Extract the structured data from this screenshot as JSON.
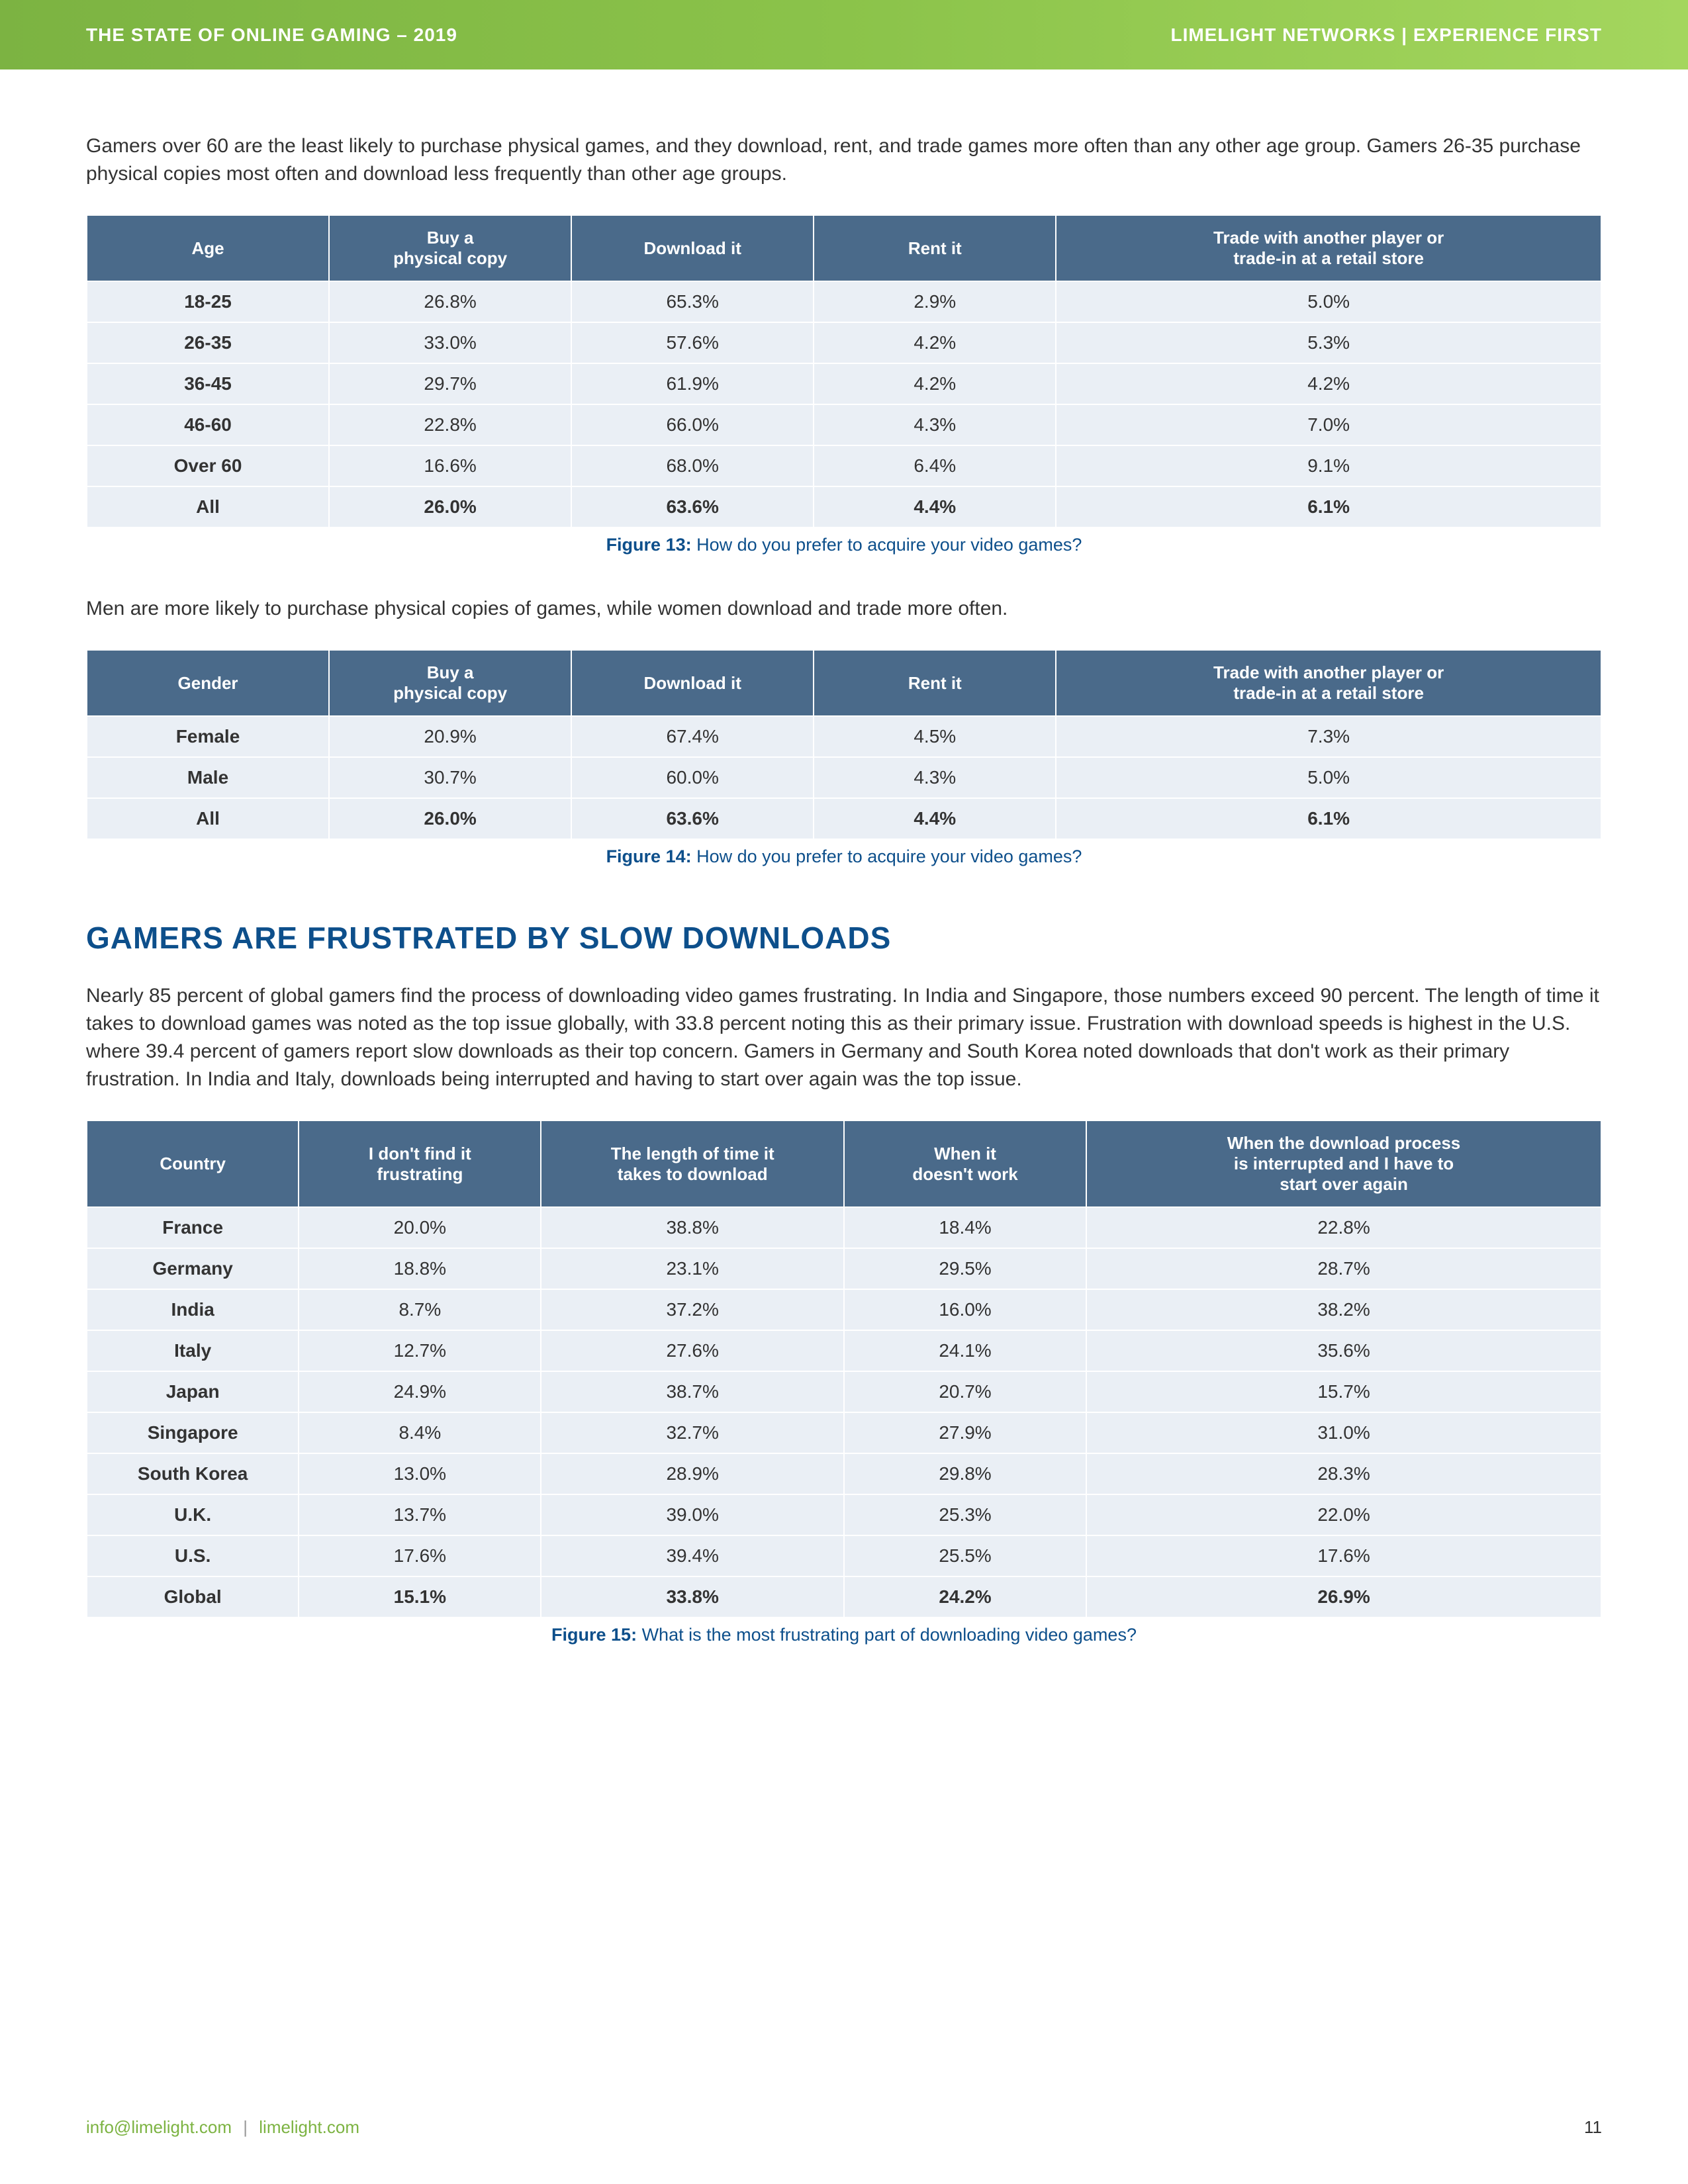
{
  "header": {
    "left": "THE STATE OF ONLINE GAMING – 2019",
    "right": "LIMELIGHT NETWORKS | EXPERIENCE FIRST"
  },
  "intro1": "Gamers over 60 are the least likely to purchase physical games, and they download, rent, and trade games more often than any other age group. Gamers 26-35 purchase physical copies most often and download less frequently than other age groups.",
  "table1": {
    "headers": [
      "Age",
      "Buy a\nphysical copy",
      "Download it",
      "Rent it",
      "Trade with another player or\ntrade-in at a retail store"
    ],
    "rows": [
      [
        "18-25",
        "26.8%",
        "65.3%",
        "2.9%",
        "5.0%"
      ],
      [
        "26-35",
        "33.0%",
        "57.6%",
        "4.2%",
        "5.3%"
      ],
      [
        "36-45",
        "29.7%",
        "61.9%",
        "4.2%",
        "4.2%"
      ],
      [
        "46-60",
        "22.8%",
        "66.0%",
        "4.3%",
        "7.0%"
      ],
      [
        "Over 60",
        "16.6%",
        "68.0%",
        "6.4%",
        "9.1%"
      ],
      [
        "All",
        "26.0%",
        "63.6%",
        "4.4%",
        "6.1%"
      ]
    ],
    "caption_label": "Figure 13:",
    "caption_text": " How do you prefer to acquire your video games?"
  },
  "intro2": "Men are more likely to purchase physical copies of games, while women download and trade more often.",
  "table2": {
    "headers": [
      "Gender",
      "Buy a\nphysical copy",
      "Download it",
      "Rent it",
      "Trade with another player or\ntrade-in at a retail store"
    ],
    "rows": [
      [
        "Female",
        "20.9%",
        "67.4%",
        "4.5%",
        "7.3%"
      ],
      [
        "Male",
        "30.7%",
        "60.0%",
        "4.3%",
        "5.0%"
      ],
      [
        "All",
        "26.0%",
        "63.6%",
        "4.4%",
        "6.1%"
      ]
    ],
    "caption_label": "Figure 14:",
    "caption_text": " How do you prefer to acquire your video games?"
  },
  "section_heading": "GAMERS ARE FRUSTRATED BY SLOW DOWNLOADS",
  "intro3": "Nearly 85 percent of global gamers find the process of downloading video games frustrating. In India and Singapore, those numbers exceed 90 percent. The length of time it takes to download games was noted as the top issue globally, with 33.8 percent noting this as their primary issue. Frustration with download speeds is highest in the U.S. where 39.4 percent of gamers report slow downloads as their top concern. Gamers in Germany and South Korea noted downloads that don't work as their primary frustration. In India and Italy, downloads being interrupted and having to start over again was the top issue.",
  "table3": {
    "headers": [
      "Country",
      "I don't find it\nfrustrating",
      "The length of time it\ntakes to download",
      "When it\ndoesn't work",
      "When the download process\nis interrupted and I have to\nstart over again"
    ],
    "rows": [
      [
        "France",
        "20.0%",
        "38.8%",
        "18.4%",
        "22.8%"
      ],
      [
        "Germany",
        "18.8%",
        "23.1%",
        "29.5%",
        "28.7%"
      ],
      [
        "India",
        "8.7%",
        "37.2%",
        "16.0%",
        "38.2%"
      ],
      [
        "Italy",
        "12.7%",
        "27.6%",
        "24.1%",
        "35.6%"
      ],
      [
        "Japan",
        "24.9%",
        "38.7%",
        "20.7%",
        "15.7%"
      ],
      [
        "Singapore",
        "8.4%",
        "32.7%",
        "27.9%",
        "31.0%"
      ],
      [
        "South Korea",
        "13.0%",
        "28.9%",
        "29.8%",
        "28.3%"
      ],
      [
        "U.K.",
        "13.7%",
        "39.0%",
        "25.3%",
        "22.0%"
      ],
      [
        "U.S.",
        "17.6%",
        "39.4%",
        "25.5%",
        "17.6%"
      ],
      [
        "Global",
        "15.1%",
        "33.8%",
        "24.2%",
        "26.9%"
      ]
    ],
    "caption_label": "Figure 15:",
    "caption_text": " What is the most frustrating part of downloading video games?"
  },
  "footer": {
    "email": "info@limelight.com",
    "separator": "|",
    "site": "limelight.com",
    "page": "11"
  }
}
